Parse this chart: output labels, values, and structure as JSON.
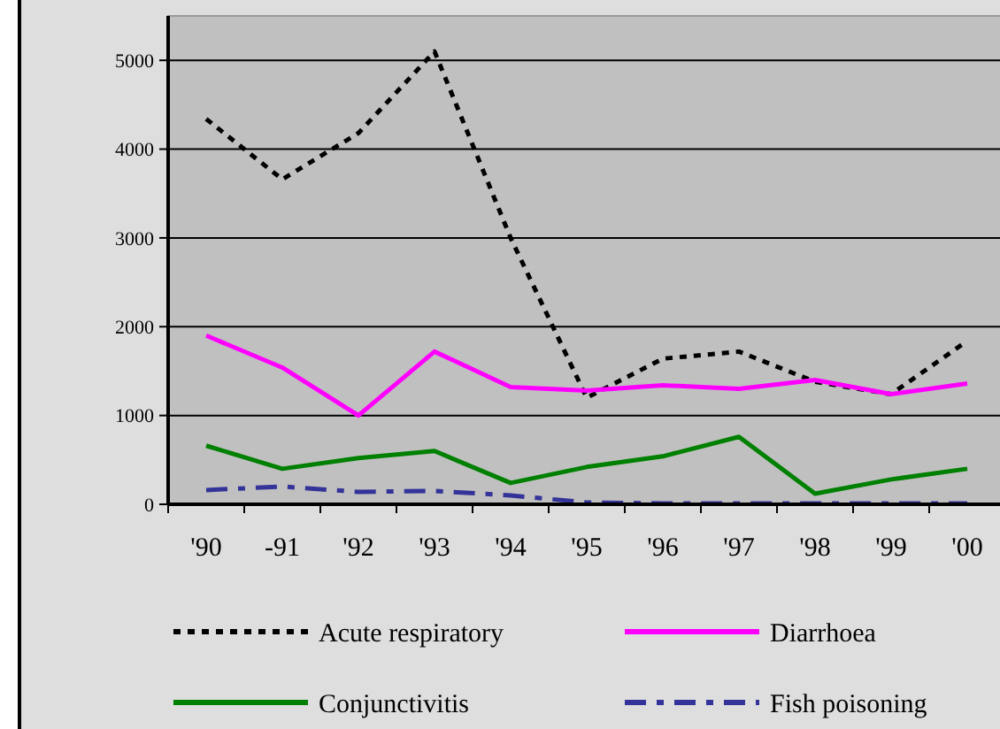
{
  "chart_data": {
    "type": "line",
    "categories": [
      "'90",
      "-91",
      "'92",
      "'93",
      "'94",
      "'95",
      "'96",
      "'97",
      "'98",
      "'99",
      "'00"
    ],
    "series": [
      {
        "name": "Acute respiratory",
        "color": "#000000",
        "line_style": "dotted",
        "values": [
          4340,
          3660,
          4180,
          5100,
          3000,
          1200,
          1640,
          1720,
          1380,
          1240,
          1840
        ]
      },
      {
        "name": "Diarrhoea",
        "color": "#ff00ff",
        "line_style": "solid",
        "values": [
          1900,
          1540,
          1000,
          1720,
          1320,
          1280,
          1340,
          1300,
          1400,
          1240,
          1360
        ]
      },
      {
        "name": "Conjunctivitis",
        "color": "#008000",
        "line_style": "solid",
        "values": [
          660,
          400,
          520,
          600,
          240,
          420,
          540,
          760,
          120,
          280,
          400
        ]
      },
      {
        "name": "Fish poisoning",
        "color": "#333399",
        "line_style": "dashed",
        "values": [
          160,
          200,
          140,
          150,
          100,
          20,
          10,
          10,
          10,
          10,
          10
        ]
      }
    ],
    "ylim": [
      0,
      5500
    ],
    "yticks": [
      0,
      1000,
      2000,
      3000,
      4000,
      5000
    ],
    "grid": "y",
    "legend": "bottom",
    "marker": "none"
  }
}
